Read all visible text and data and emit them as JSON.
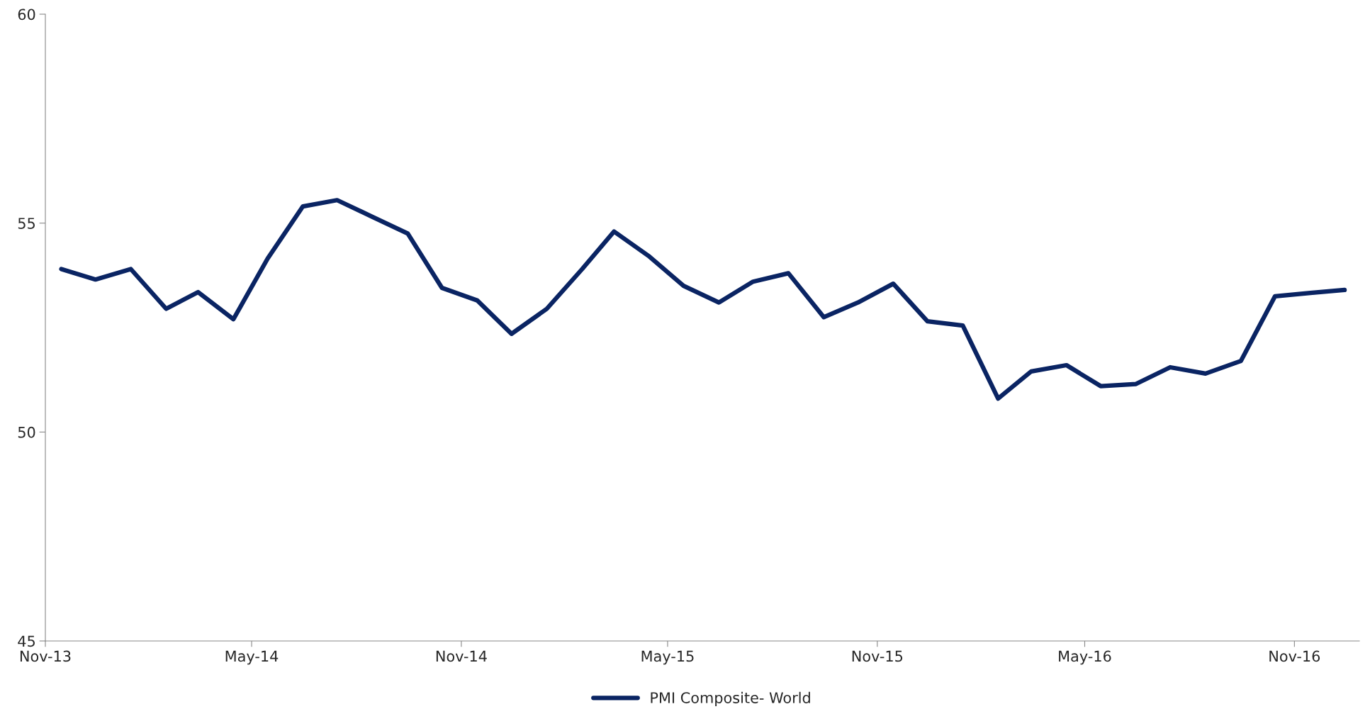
{
  "chart_data": {
    "type": "line",
    "x": [
      "2013-11-15",
      "2013-12-15",
      "2014-01-15",
      "2014-02-15",
      "2014-03-15",
      "2014-04-15",
      "2014-05-15",
      "2014-06-15",
      "2014-07-15",
      "2014-08-15",
      "2014-09-15",
      "2014-10-15",
      "2014-11-15",
      "2014-12-15",
      "2015-01-15",
      "2015-02-15",
      "2015-03-15",
      "2015-04-15",
      "2015-05-15",
      "2015-06-15",
      "2015-07-15",
      "2015-08-15",
      "2015-09-15",
      "2015-10-15",
      "2015-11-15",
      "2015-12-15",
      "2016-01-15",
      "2016-02-15",
      "2016-03-15",
      "2016-04-15",
      "2016-05-15",
      "2016-06-15",
      "2016-07-15",
      "2016-08-15",
      "2016-09-15",
      "2016-10-15",
      "2016-11-15",
      "2016-12-15"
    ],
    "series": [
      {
        "name": "PMI Composite- World",
        "color": "#0a2463",
        "values": [
          53.9,
          53.65,
          53.9,
          52.95,
          53.35,
          52.7,
          54.15,
          55.4,
          55.55,
          55.15,
          54.75,
          53.45,
          53.15,
          52.35,
          52.95,
          53.9,
          54.8,
          54.2,
          53.5,
          53.1,
          53.6,
          53.8,
          52.75,
          53.1,
          53.55,
          52.65,
          52.55,
          50.8,
          51.45,
          51.6,
          51.1,
          51.15,
          51.55,
          51.4,
          51.7,
          53.25,
          53.33,
          53.4
        ]
      }
    ],
    "xlim": [
      "2013-11-01",
      "2016-12-28"
    ],
    "xticks": [
      {
        "value": "2013-11-01",
        "label": "Nov-13"
      },
      {
        "value": "2014-05-01",
        "label": "May-14"
      },
      {
        "value": "2014-11-01",
        "label": "Nov-14"
      },
      {
        "value": "2015-05-01",
        "label": "May-15"
      },
      {
        "value": "2015-11-01",
        "label": "Nov-15"
      },
      {
        "value": "2016-05-01",
        "label": "May-16"
      },
      {
        "value": "2016-11-01",
        "label": "Nov-16"
      }
    ],
    "ylim": [
      45,
      60
    ],
    "yticks": [
      45,
      50,
      55,
      60
    ],
    "grid": false,
    "legend": "bottom",
    "marker": "none",
    "line_style": "solid"
  }
}
